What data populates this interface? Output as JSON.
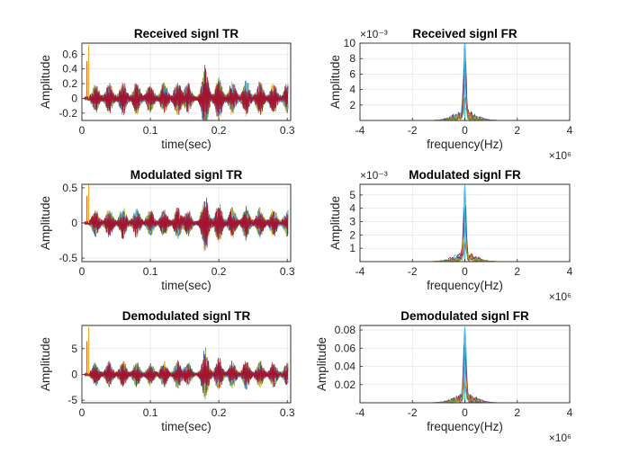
{
  "figure": {
    "background": "#ffffff",
    "series_colors": [
      "#0072BD",
      "#D95319",
      "#EDB120",
      "#7E2F8E",
      "#77AC30",
      "#4DBEEE",
      "#A2142F"
    ]
  },
  "chart_data": [
    {
      "type": "line",
      "title": "Received signl TR",
      "xlabel": "time(sec)",
      "ylabel": "Amplitude",
      "xlim": [
        0,
        0.305
      ],
      "ylim": [
        -0.3,
        0.75
      ],
      "xticks": [
        0,
        0.1,
        0.2,
        0.3
      ],
      "xtick_labels": [
        "0",
        "0.1",
        "0.2",
        "0.3"
      ],
      "yticks": [
        -0.2,
        0,
        0.2,
        0.4,
        0.6
      ],
      "ytick_labels": [
        "-0.2",
        "0",
        "0.2",
        "0.4",
        "0.6"
      ],
      "exponent": "",
      "grid": true,
      "signal_kind": "time",
      "amplitude": 0.32,
      "spike": {
        "x": 0.01,
        "value": 0.72
      },
      "bursts": [
        0.02,
        0.04,
        0.06,
        0.08,
        0.1,
        0.12,
        0.14,
        0.155,
        0.18,
        0.2,
        0.22,
        0.24,
        0.26,
        0.28,
        0.3
      ],
      "burst_strengths": [
        0.55,
        0.6,
        0.7,
        0.65,
        0.6,
        0.65,
        0.7,
        0.6,
        1.35,
        0.9,
        0.7,
        0.75,
        0.7,
        0.65,
        0.6
      ]
    },
    {
      "type": "line",
      "title": "Received signl FR",
      "xlabel": "frequency(Hz)",
      "ylabel": "Amplitude",
      "xlim": [
        -4,
        4
      ],
      "ylim": [
        0,
        10
      ],
      "xticks": [
        -4,
        -2,
        0,
        2,
        4
      ],
      "xtick_labels": [
        "-4",
        "-2",
        "0",
        "2",
        "4"
      ],
      "yticks": [
        2,
        4,
        6,
        8,
        10
      ],
      "ytick_labels": [
        "2",
        "4",
        "6",
        "8",
        "10"
      ],
      "x_exponent": "×10⁶",
      "y_exponent": "×10⁻³",
      "grid": true,
      "signal_kind": "spectrum",
      "peak": 10,
      "band_half_width": 1.3
    },
    {
      "type": "line",
      "title": "Modulated signl TR",
      "xlabel": "time(sec)",
      "ylabel": "Amplitude",
      "xlim": [
        0,
        0.305
      ],
      "ylim": [
        -0.55,
        0.55
      ],
      "xticks": [
        0,
        0.1,
        0.2,
        0.3
      ],
      "xtick_labels": [
        "0",
        "0.1",
        "0.2",
        "0.3"
      ],
      "yticks": [
        -0.5,
        0,
        0.5
      ],
      "ytick_labels": [
        "-0.5",
        "0",
        "0.5"
      ],
      "exponent": "",
      "grid": true,
      "signal_kind": "time",
      "amplitude": 0.3,
      "spike": {
        "x": 0.01,
        "value": 0.55
      },
      "bursts": [
        0.02,
        0.04,
        0.06,
        0.08,
        0.1,
        0.12,
        0.14,
        0.155,
        0.18,
        0.2,
        0.22,
        0.24,
        0.26,
        0.28,
        0.3
      ],
      "burst_strengths": [
        0.6,
        0.65,
        0.7,
        0.65,
        0.6,
        0.65,
        0.7,
        0.6,
        1.4,
        0.9,
        0.7,
        0.75,
        0.7,
        0.65,
        0.6
      ]
    },
    {
      "type": "line",
      "title": "Modulated signl FR",
      "xlabel": "frequency(Hz)",
      "ylabel": "Amplitude",
      "xlim": [
        -4,
        4
      ],
      "ylim": [
        0,
        5.8
      ],
      "xticks": [
        -4,
        -2,
        0,
        2,
        4
      ],
      "xtick_labels": [
        "-4",
        "-2",
        "0",
        "2",
        "4"
      ],
      "yticks": [
        1,
        2,
        3,
        4,
        5
      ],
      "ytick_labels": [
        "1",
        "2",
        "3",
        "4",
        "5"
      ],
      "x_exponent": "×10⁶",
      "y_exponent": "×10⁻³",
      "grid": true,
      "signal_kind": "spectrum",
      "peak": 5.6,
      "band_half_width": 1.3
    },
    {
      "type": "line",
      "title": "Demodulated signl TR",
      "xlabel": "time(sec)",
      "ylabel": "Amplitude",
      "xlim": [
        0,
        0.305
      ],
      "ylim": [
        -5.5,
        9.5
      ],
      "xticks": [
        0,
        0.1,
        0.2,
        0.3
      ],
      "xtick_labels": [
        "0",
        "0.1",
        "0.2",
        "0.3"
      ],
      "yticks": [
        -5,
        0,
        5
      ],
      "ytick_labels": [
        "-5",
        "0",
        "5"
      ],
      "exponent": "",
      "grid": true,
      "signal_kind": "time",
      "amplitude": 3.6,
      "spike": {
        "x": 0.01,
        "value": 9.2
      },
      "bursts": [
        0.02,
        0.04,
        0.06,
        0.08,
        0.1,
        0.12,
        0.14,
        0.155,
        0.18,
        0.2,
        0.22,
        0.24,
        0.26,
        0.28,
        0.3
      ],
      "burst_strengths": [
        0.6,
        0.65,
        0.7,
        0.65,
        0.6,
        0.65,
        0.7,
        0.6,
        1.4,
        0.9,
        0.7,
        0.75,
        0.7,
        0.65,
        0.6
      ]
    },
    {
      "type": "line",
      "title": "Demodulated signl FR",
      "xlabel": "frequency(Hz)",
      "ylabel": "Amplitude",
      "xlim": [
        -4,
        4
      ],
      "ylim": [
        0,
        0.085
      ],
      "xticks": [
        -4,
        -2,
        0,
        2,
        4
      ],
      "xtick_labels": [
        "-4",
        "-2",
        "0",
        "2",
        "4"
      ],
      "yticks": [
        0.02,
        0.04,
        0.06,
        0.08
      ],
      "ytick_labels": [
        "0.02",
        "0.04",
        "0.06",
        "0.08"
      ],
      "x_exponent": "×10⁶",
      "y_exponent": "",
      "grid": true,
      "signal_kind": "spectrum",
      "peak": 0.08,
      "band_half_width": 1.3
    }
  ]
}
